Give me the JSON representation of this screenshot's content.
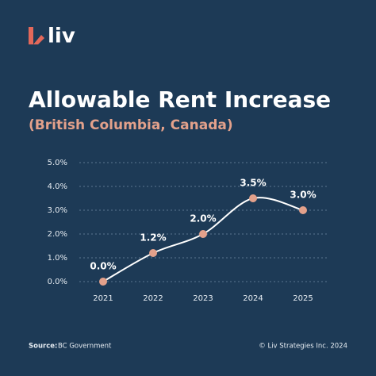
{
  "logo": "liv",
  "footer": {
    "source_label": "Source:",
    "source": "BC Government",
    "copyright": "© Liv Strategies Inc. 2024"
  },
  "chart_data": {
    "type": "line",
    "title": "Allowable Rent Increase",
    "subtitle": "(British Columbia, Canada)",
    "categories": [
      "2021",
      "2022",
      "2023",
      "2024",
      "2025"
    ],
    "series": [
      {
        "name": "Allowable Rent Increase",
        "color": "#ffffff",
        "marker_color": "#e3a18b",
        "values": [
          0.0,
          1.2,
          2.0,
          3.5,
          3.0
        ],
        "value_labels": [
          "0.0%",
          "1.2%",
          "2.0%",
          "3.5%",
          "3.0%"
        ]
      }
    ],
    "ylim": [
      0,
      5
    ],
    "yticks": [
      {
        "value": 0,
        "label": "0.0%"
      },
      {
        "value": 1,
        "label": "1.0%"
      },
      {
        "value": 2,
        "label": "2.0%"
      },
      {
        "value": 3,
        "label": "3.0%"
      },
      {
        "value": 4,
        "label": "4.0%"
      },
      {
        "value": 5,
        "label": "5.0%"
      }
    ],
    "grid": true
  }
}
